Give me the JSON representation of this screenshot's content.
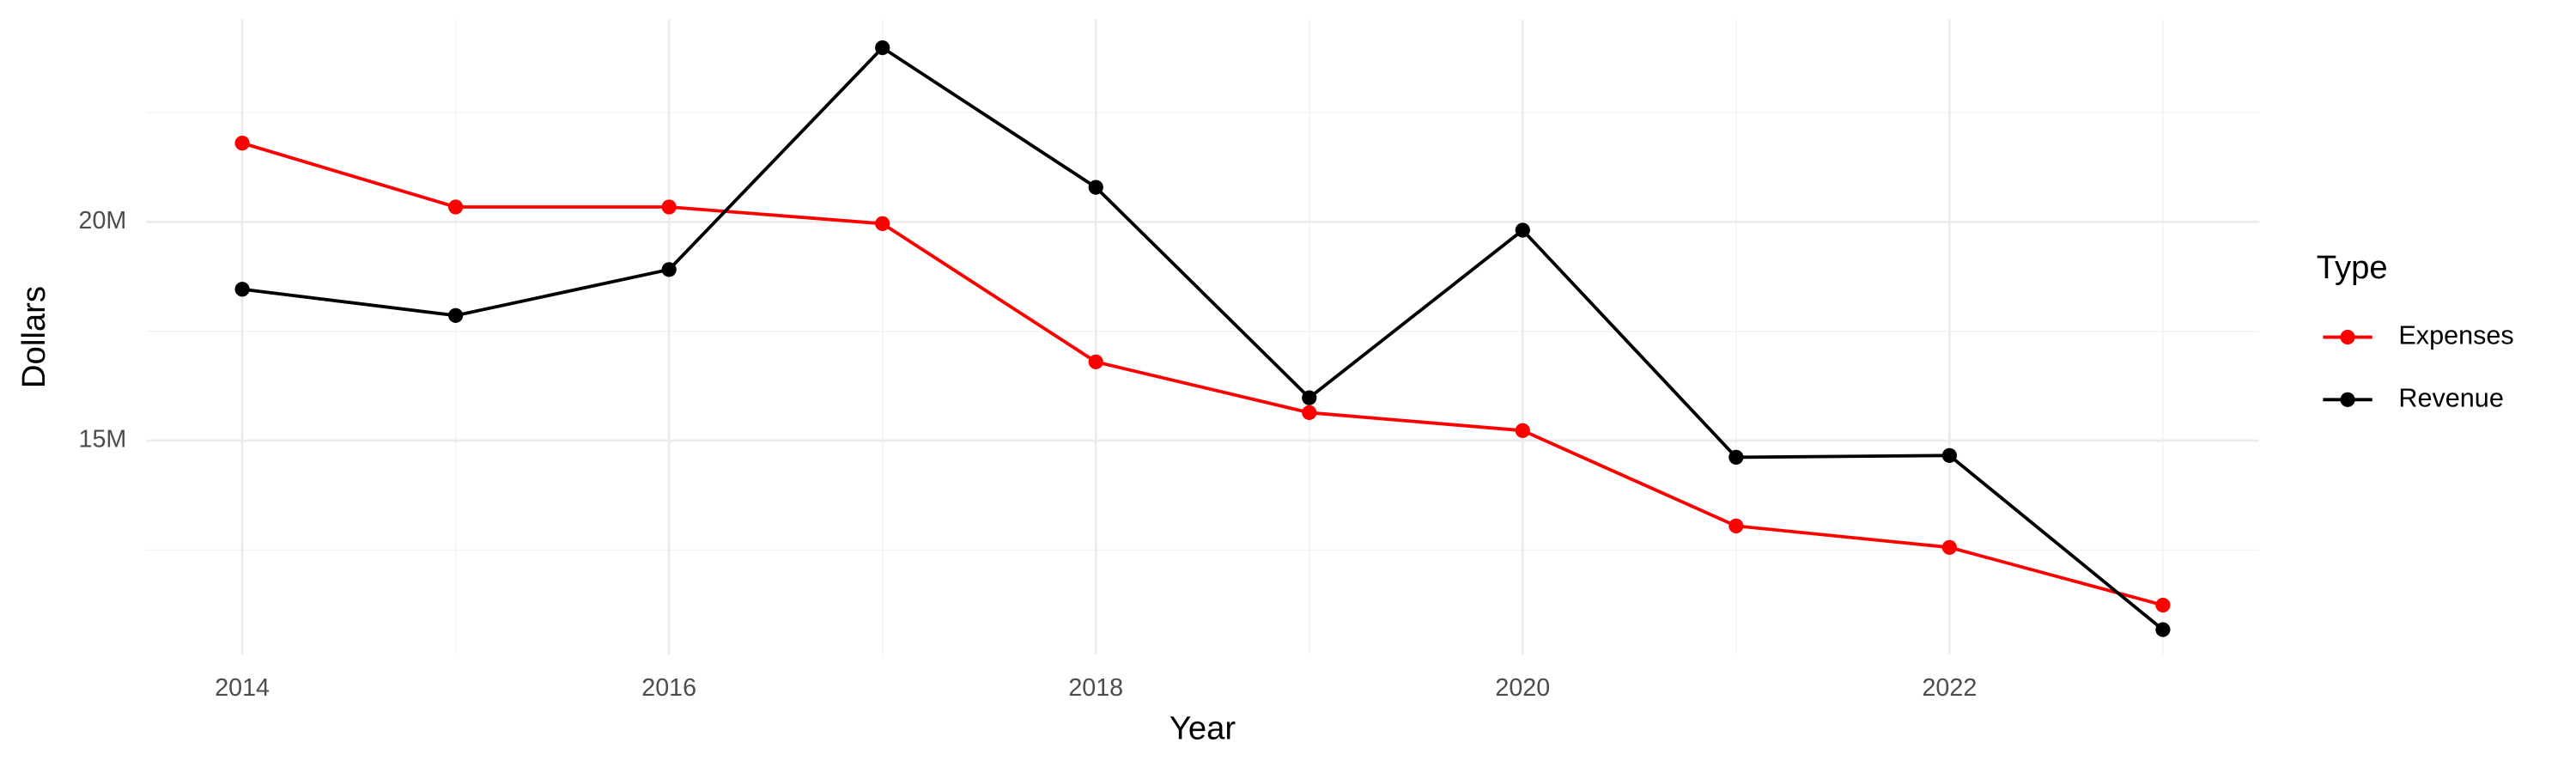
{
  "chart_data": {
    "type": "line",
    "x_title": "Year",
    "y_title": "Dollars",
    "legend_title": "Type",
    "x": [
      2014,
      2015,
      2016,
      2017,
      2018,
      2019,
      2020,
      2021,
      2022,
      2023
    ],
    "series": [
      {
        "name": "Expenses",
        "color": "#ff0000",
        "values": [
          21800000,
          20340000,
          20340000,
          19960000,
          16800000,
          15640000,
          15230000,
          13050000,
          12560000,
          11240000
        ]
      },
      {
        "name": "Revenue",
        "color": "#000000",
        "values": [
          18460000,
          17860000,
          18910000,
          23980000,
          20790000,
          15980000,
          19810000,
          14620000,
          14660000,
          10680000
        ]
      }
    ],
    "xlim": [
      2013.55,
      2023.45
    ],
    "xticks": [
      2014,
      2016,
      2018,
      2020,
      2022
    ],
    "x_minor_grid": [
      2015,
      2017,
      2019,
      2021,
      2023
    ],
    "ylim": [
      10110000,
      24620000
    ],
    "yticks": [
      {
        "value": 15000000,
        "label": "15M"
      },
      {
        "value": 20000000,
        "label": "20M"
      }
    ],
    "y_minor_grid": [
      12500000,
      17500000,
      22500000
    ],
    "grid": true,
    "legend": "right"
  }
}
